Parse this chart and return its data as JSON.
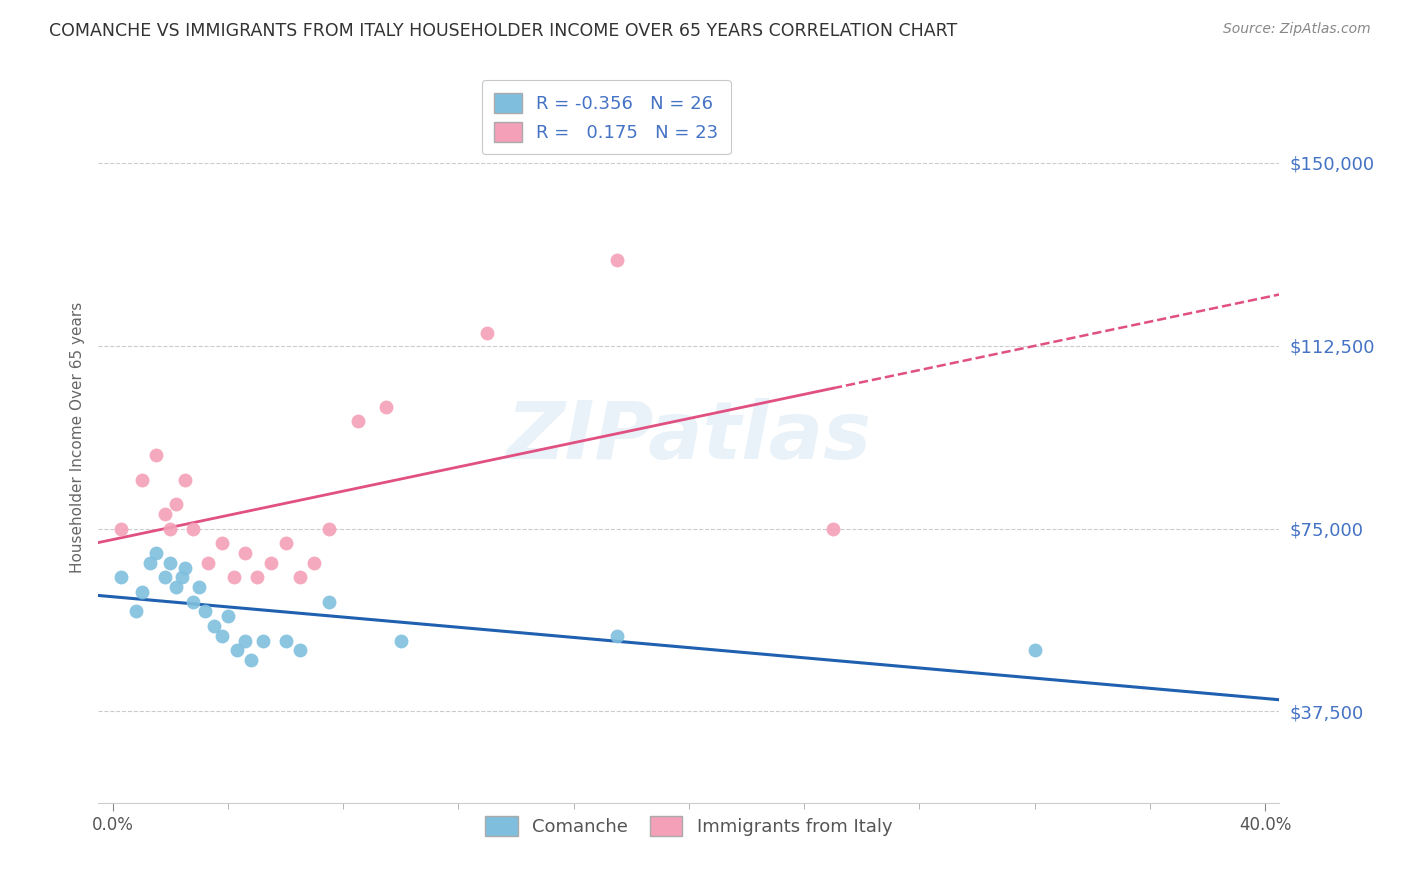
{
  "title": "COMANCHE VS IMMIGRANTS FROM ITALY HOUSEHOLDER INCOME OVER 65 YEARS CORRELATION CHART",
  "source": "Source: ZipAtlas.com",
  "xlabel_tick_vals": [
    0.0,
    0.4
  ],
  "xlabel_tick_labels": [
    "0.0%",
    "40.0%"
  ],
  "ylabel": "Householder Income Over 65 years",
  "ylabel_tick_vals": [
    37500,
    75000,
    112500,
    150000
  ],
  "ylabel_tick_labels": [
    "$37,500",
    "$75,000",
    "$112,500",
    "$150,000"
  ],
  "xlim": [
    -0.005,
    0.405
  ],
  "ylim": [
    18750,
    168750
  ],
  "watermark": "ZIPatlas",
  "comanche_R": "-0.356",
  "comanche_N": "26",
  "italy_R": "0.175",
  "italy_N": "23",
  "comanche_color": "#7fbfdd",
  "italy_color": "#f4a0b8",
  "comanche_line_color": "#2060b0",
  "italy_line_color": "#e05080",
  "comanche_x": [
    0.003,
    0.008,
    0.01,
    0.013,
    0.015,
    0.018,
    0.02,
    0.022,
    0.024,
    0.025,
    0.028,
    0.03,
    0.032,
    0.035,
    0.038,
    0.04,
    0.043,
    0.046,
    0.048,
    0.052,
    0.06,
    0.065,
    0.075,
    0.1,
    0.175,
    0.32
  ],
  "comanche_y": [
    65000,
    58000,
    62000,
    68000,
    70000,
    65000,
    68000,
    63000,
    65000,
    67000,
    60000,
    63000,
    58000,
    55000,
    53000,
    57000,
    50000,
    52000,
    48000,
    52000,
    52000,
    50000,
    60000,
    52000,
    53000,
    50000
  ],
  "italy_x": [
    0.003,
    0.01,
    0.015,
    0.018,
    0.02,
    0.022,
    0.025,
    0.028,
    0.033,
    0.038,
    0.042,
    0.046,
    0.05,
    0.055,
    0.06,
    0.065,
    0.07,
    0.075,
    0.085,
    0.095,
    0.13,
    0.175,
    0.25
  ],
  "italy_y": [
    75000,
    85000,
    90000,
    78000,
    75000,
    80000,
    85000,
    75000,
    68000,
    72000,
    65000,
    70000,
    65000,
    68000,
    72000,
    65000,
    68000,
    75000,
    97000,
    100000,
    115000,
    130000,
    75000
  ],
  "grid_color": "#cccccc",
  "background_color": "#ffffff",
  "legend_edge_color": "#aaaaaa"
}
